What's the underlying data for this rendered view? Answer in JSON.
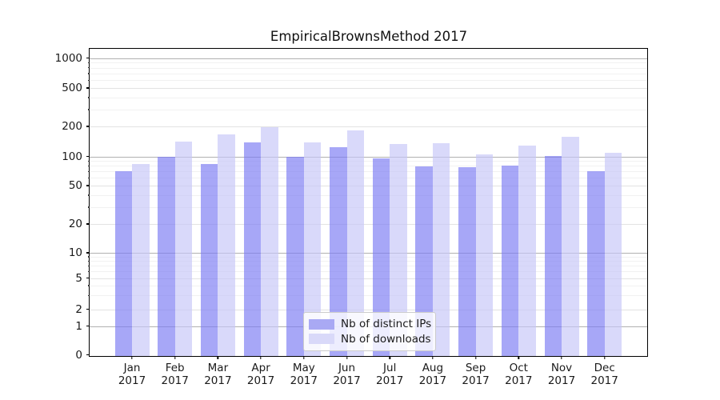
{
  "figure": {
    "title": "EmpiricalBrownsMethod 2017"
  },
  "chart_data": {
    "type": "bar",
    "title": "EmpiricalBrownsMethod 2017",
    "x_months": [
      "Jan",
      "Feb",
      "Mar",
      "Apr",
      "May",
      "Jun",
      "Jul",
      "Aug",
      "Sep",
      "Oct",
      "Nov",
      "Dec"
    ],
    "x_year": "2017",
    "series": [
      {
        "name": "Nb of distinct IPs",
        "fill": "rgba(122,122,243,0.66)",
        "swatch": "#a9a9f4",
        "values": [
          70,
          100,
          83,
          137,
          99,
          124,
          95,
          79,
          77,
          81,
          101,
          70
        ]
      },
      {
        "name": "Nb of downloads",
        "fill": "rgba(197,197,247,0.66)",
        "swatch": "#d9d9f9",
        "values": [
          84,
          142,
          166,
          197,
          138,
          181,
          133,
          135,
          105,
          128,
          157,
          108
        ]
      }
    ],
    "yscale": "symlog",
    "yticks": [
      0,
      1,
      2,
      5,
      10,
      20,
      50,
      100,
      200,
      500,
      1000
    ],
    "ylim": [
      0,
      1250
    ],
    "xlabel": "",
    "ylabel": "",
    "grid": "horizontal",
    "legend_position": "lower-center-inside"
  }
}
